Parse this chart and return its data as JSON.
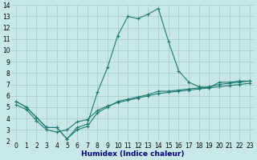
{
  "xlabel": "Humidex (Indice chaleur)",
  "x": [
    0,
    1,
    2,
    3,
    4,
    5,
    6,
    7,
    8,
    9,
    10,
    11,
    12,
    13,
    14,
    15,
    16,
    17,
    18,
    19,
    20,
    21,
    22,
    23
  ],
  "line_max": [
    5.5,
    5.0,
    4.1,
    3.2,
    3.2,
    2.2,
    3.2,
    3.5,
    6.3,
    8.5,
    11.3,
    13.0,
    12.8,
    13.2,
    13.7,
    10.8,
    8.2,
    7.2,
    6.8,
    6.7,
    7.2,
    7.2,
    7.3,
    7.3
  ],
  "line_min": [
    5.5,
    5.0,
    4.1,
    3.2,
    3.2,
    2.2,
    3.0,
    3.3,
    4.5,
    5.0,
    5.5,
    5.7,
    5.9,
    6.1,
    6.4,
    6.4,
    6.5,
    6.6,
    6.7,
    6.8,
    7.0,
    7.1,
    7.2,
    7.3
  ],
  "line_mean": [
    5.2,
    4.8,
    3.8,
    3.0,
    2.8,
    3.0,
    3.7,
    3.9,
    4.7,
    5.1,
    5.4,
    5.6,
    5.8,
    6.0,
    6.2,
    6.3,
    6.4,
    6.5,
    6.6,
    6.7,
    6.8,
    6.9,
    7.0,
    7.1
  ],
  "line_color": "#1e7a6e",
  "bg_color": "#c8e8e8",
  "grid_color": "#a8c8c8",
  "ylim": [
    2,
    14
  ],
  "xlim": [
    -0.5,
    23.5
  ],
  "yticks": [
    2,
    3,
    4,
    5,
    6,
    7,
    8,
    9,
    10,
    11,
    12,
    13,
    14
  ],
  "xticks": [
    0,
    1,
    2,
    3,
    4,
    5,
    6,
    7,
    8,
    9,
    10,
    11,
    12,
    13,
    14,
    15,
    16,
    17,
    18,
    19,
    20,
    21,
    22,
    23
  ],
  "xlabel_color": "#000080",
  "tick_fontsize": 5.5,
  "xlabel_fontsize": 6.5
}
